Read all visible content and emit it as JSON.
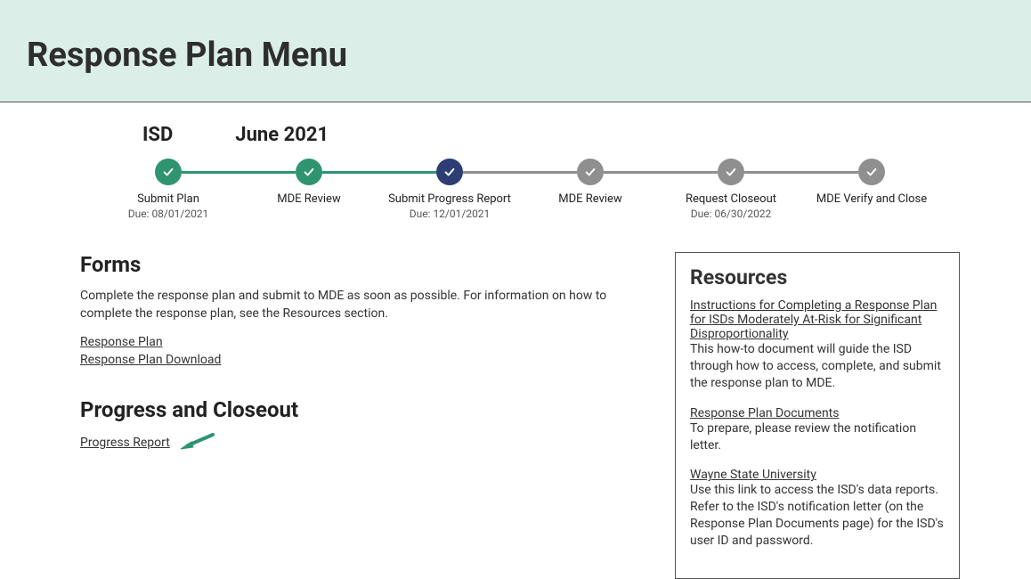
{
  "header": {
    "page_title": "Response Plan Menu"
  },
  "stepper_top_labels": {
    "left": "ISD",
    "right": "June 2021"
  },
  "colors": {
    "green": "#2f9470",
    "navy": "#2c3e73",
    "gray": "#8f8f8f",
    "light_header": "#dbeee8"
  },
  "steps": [
    {
      "label": "Submit Plan",
      "due": "Due: 08/01/2021",
      "dot_color": "#2f9470",
      "connector_color": "#2f9470"
    },
    {
      "label": "MDE Review",
      "due": "",
      "dot_color": "#2f9470",
      "connector_color": "#2f9470"
    },
    {
      "label": "Submit Progress Report",
      "due": "Due: 12/01/2021",
      "dot_color": "#2c3e73",
      "connector_color": "#8f8f8f"
    },
    {
      "label": "MDE Review",
      "due": "",
      "dot_color": "#8f8f8f",
      "connector_color": "#8f8f8f"
    },
    {
      "label": "Request Closeout",
      "due": "Due: 06/30/2022",
      "dot_color": "#8f8f8f",
      "connector_color": "#8f8f8f"
    },
    {
      "label": "MDE Verify and Close",
      "due": "",
      "dot_color": "#8f8f8f",
      "connector_color": ""
    }
  ],
  "forms": {
    "heading": "Forms",
    "intro": "Complete the response plan and submit to MDE as soon as possible. For information on how to complete the response plan, see the Resources section.",
    "links": [
      {
        "label": "Response Plan"
      },
      {
        "label": "Response Plan Download"
      }
    ]
  },
  "progress": {
    "heading": "Progress and Closeout",
    "link_label": "Progress Report",
    "arrow_color": "#2f9470"
  },
  "resources": {
    "heading": "Resources",
    "items": [
      {
        "link": "Instructions for Completing a Response Plan for ISDs Moderately At-Risk for Significant Disproportionality",
        "desc": "This how-to document will guide the ISD through how to access, complete, and submit the response plan to MDE."
      },
      {
        "link": "Response Plan Documents",
        "desc": "To prepare, please review the notification letter."
      },
      {
        "link": "Wayne State University",
        "desc": "Use this link to access the ISD's data reports. Refer to the ISD's notification letter (on the Response Plan Documents page) for the ISD's user ID and password."
      }
    ]
  }
}
